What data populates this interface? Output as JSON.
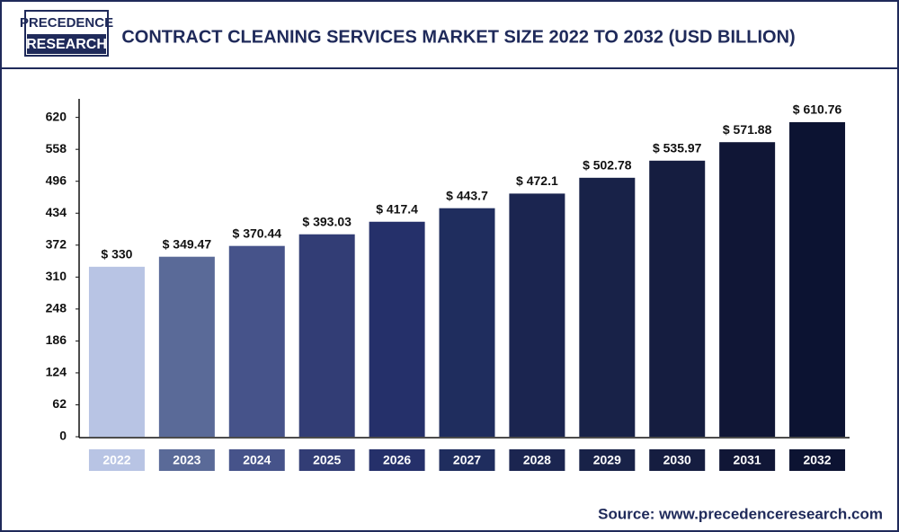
{
  "header": {
    "logo": [
      "PRECEDENCE",
      "RESEARCH"
    ]
  },
  "chart_data": {
    "type": "bar",
    "title": "CONTRACT CLEANING SERVICES MARKET  SIZE 2022 TO 2032 (USD BILLION)",
    "categories": [
      "2022",
      "2023",
      "2024",
      "2025",
      "2026",
      "2027",
      "2028",
      "2029",
      "2030",
      "2031",
      "2032"
    ],
    "values": [
      330,
      349.47,
      370.44,
      393.03,
      417.4,
      443.7,
      472.1,
      502.78,
      535.97,
      571.88,
      610.76
    ],
    "value_labels": [
      "$ 330",
      "$ 349.47",
      "$ 370.44",
      "$ 393.03",
      "$ 417.4",
      "$ 443.7",
      "$ 472.1",
      "$ 502.78",
      "$ 535.97",
      "$ 571.88",
      "$ 610.76"
    ],
    "colors": [
      "#b8c4e4",
      "#5a6a98",
      "#46538a",
      "#323d75",
      "#25306a",
      "#1f2d5e",
      "#1b2550",
      "#182248",
      "#151d40",
      "#101636",
      "#0c1332"
    ],
    "ylim": [
      0,
      656
    ],
    "yticks": [
      0,
      62,
      124,
      186,
      248,
      310,
      372,
      434,
      496,
      558,
      620
    ],
    "grid": false,
    "source": "Source: www.precedenceresearch.com"
  }
}
